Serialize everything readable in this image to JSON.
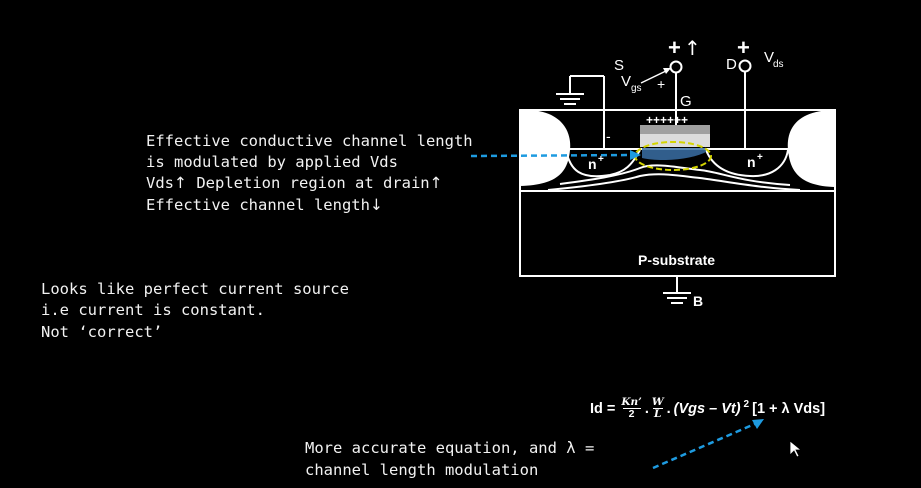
{
  "notes": {
    "line1": "Effective conductive channel length",
    "line2": "is modulated by applied Vds",
    "line3_a": "Vds",
    "line3_b": "Depletion region at drain",
    "line4": "Effective channel length",
    "up_arrow": "↑",
    "down_arrow": "↓"
  },
  "current_source": {
    "line1": "Looks like perfect current source",
    "line2": "i.e current is constant.",
    "line3": "Not ‘correct’"
  },
  "accurate": {
    "line1": "More accurate equation, and λ =",
    "line2": "channel length modulation"
  },
  "equation": {
    "lhs": "Id =",
    "kn_num": "Kn’",
    "kn_den": "2",
    "w_num": "W",
    "w_den": "L",
    "dot": ".",
    "term": "(Vgs – Vt)",
    "exp": "2",
    "bracket": "[1 + λ Vds]"
  },
  "mosfet": {
    "source_label": "S",
    "vgs_label": "V",
    "vgs_sub": "gs",
    "gate_label": "G",
    "drain_label": "D",
    "vds_label": "V",
    "vds_sub": "ds",
    "plus": "+",
    "minus": "-",
    "gate_charges": "++++++",
    "n_left": "n",
    "n_right": "n",
    "n_sup": "+",
    "substrate_label": "P-substrate",
    "body_label": "B",
    "up_arrow": "↑"
  },
  "colors": {
    "background": "#000000",
    "dashed_arrow": "#1e9be0",
    "ellipse": "#d4d400",
    "gate_plate": "#a0a0a0",
    "oxide": "#dcdcdc",
    "text": "#f2f2f2"
  }
}
